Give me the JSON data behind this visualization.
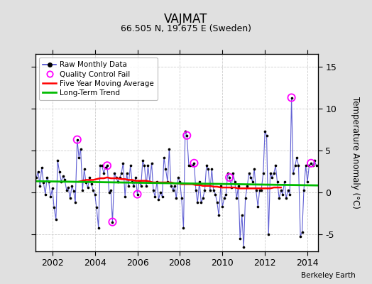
{
  "title": "VAJMAT",
  "subtitle": "66.505 N, 19.675 E (Sweden)",
  "ylabel": "Temperature Anomaly (°C)",
  "attribution": "Berkeley Earth",
  "xlim": [
    2001.2,
    2014.5
  ],
  "ylim": [
    -7.0,
    16.5
  ],
  "yticks": [
    -5,
    0,
    5,
    10,
    15
  ],
  "xticks": [
    2002,
    2004,
    2006,
    2008,
    2010,
    2012,
    2014
  ],
  "bg_color": "#e0e0e0",
  "plot_bg_color": "#ffffff",
  "line_color": "#4444cc",
  "dot_color": "#000000",
  "ma_color": "#ff0000",
  "trend_color": "#00bb00",
  "qc_color": "#ff00ff",
  "raw_data": [
    [
      2001.25,
      1.8
    ],
    [
      2001.33,
      2.5
    ],
    [
      2001.42,
      0.8
    ],
    [
      2001.5,
      3.0
    ],
    [
      2001.58,
      1.2
    ],
    [
      2001.67,
      -0.2
    ],
    [
      2001.75,
      1.8
    ],
    [
      2001.83,
      1.3
    ],
    [
      2001.92,
      -0.5
    ],
    [
      2002.0,
      0.5
    ],
    [
      2002.08,
      -1.8
    ],
    [
      2002.17,
      -3.2
    ],
    [
      2002.25,
      3.8
    ],
    [
      2002.33,
      2.5
    ],
    [
      2002.42,
      1.3
    ],
    [
      2002.5,
      2.0
    ],
    [
      2002.58,
      1.5
    ],
    [
      2002.67,
      0.3
    ],
    [
      2002.75,
      0.6
    ],
    [
      2002.83,
      -0.7
    ],
    [
      2002.92,
      0.8
    ],
    [
      2003.0,
      0.2
    ],
    [
      2003.08,
      -1.2
    ],
    [
      2003.17,
      6.3
    ],
    [
      2003.25,
      4.2
    ],
    [
      2003.33,
      5.2
    ],
    [
      2003.42,
      0.3
    ],
    [
      2003.5,
      2.8
    ],
    [
      2003.58,
      1.2
    ],
    [
      2003.67,
      0.6
    ],
    [
      2003.75,
      1.8
    ],
    [
      2003.83,
      1.0
    ],
    [
      2003.92,
      0.3
    ],
    [
      2004.0,
      -0.2
    ],
    [
      2004.08,
      -1.8
    ],
    [
      2004.17,
      -4.2
    ],
    [
      2004.25,
      3.2
    ],
    [
      2004.33,
      3.2
    ],
    [
      2004.42,
      2.3
    ],
    [
      2004.5,
      3.0
    ],
    [
      2004.58,
      3.2
    ],
    [
      2004.67,
      0.0
    ],
    [
      2004.75,
      0.3
    ],
    [
      2004.83,
      -3.5
    ],
    [
      2004.92,
      2.3
    ],
    [
      2005.0,
      1.8
    ],
    [
      2005.08,
      1.3
    ],
    [
      2005.17,
      1.8
    ],
    [
      2005.25,
      2.3
    ],
    [
      2005.33,
      3.5
    ],
    [
      2005.42,
      -0.5
    ],
    [
      2005.5,
      2.3
    ],
    [
      2005.58,
      0.8
    ],
    [
      2005.67,
      3.2
    ],
    [
      2005.75,
      1.3
    ],
    [
      2005.83,
      0.8
    ],
    [
      2005.92,
      1.8
    ],
    [
      2006.0,
      -0.2
    ],
    [
      2006.08,
      1.3
    ],
    [
      2006.17,
      0.8
    ],
    [
      2006.25,
      3.8
    ],
    [
      2006.33,
      3.2
    ],
    [
      2006.42,
      0.8
    ],
    [
      2006.5,
      3.2
    ],
    [
      2006.58,
      1.3
    ],
    [
      2006.67,
      3.5
    ],
    [
      2006.75,
      0.3
    ],
    [
      2006.83,
      -0.5
    ],
    [
      2006.92,
      1.3
    ],
    [
      2007.0,
      -0.8
    ],
    [
      2007.08,
      0.0
    ],
    [
      2007.17,
      -0.5
    ],
    [
      2007.25,
      4.2
    ],
    [
      2007.33,
      2.8
    ],
    [
      2007.42,
      1.3
    ],
    [
      2007.5,
      5.2
    ],
    [
      2007.58,
      0.8
    ],
    [
      2007.67,
      0.3
    ],
    [
      2007.75,
      0.8
    ],
    [
      2007.83,
      -0.7
    ],
    [
      2007.92,
      1.8
    ],
    [
      2008.0,
      1.3
    ],
    [
      2008.08,
      -0.7
    ],
    [
      2008.17,
      -4.2
    ],
    [
      2008.25,
      7.3
    ],
    [
      2008.33,
      6.8
    ],
    [
      2008.42,
      3.2
    ],
    [
      2008.5,
      3.2
    ],
    [
      2008.58,
      3.2
    ],
    [
      2008.67,
      3.5
    ],
    [
      2008.75,
      0.3
    ],
    [
      2008.83,
      -1.2
    ],
    [
      2008.92,
      1.3
    ],
    [
      2009.0,
      -1.2
    ],
    [
      2009.08,
      -0.7
    ],
    [
      2009.17,
      0.3
    ],
    [
      2009.25,
      3.2
    ],
    [
      2009.33,
      2.8
    ],
    [
      2009.42,
      0.3
    ],
    [
      2009.5,
      2.8
    ],
    [
      2009.58,
      0.3
    ],
    [
      2009.67,
      -0.2
    ],
    [
      2009.75,
      -1.2
    ],
    [
      2009.83,
      -2.7
    ],
    [
      2009.92,
      0.8
    ],
    [
      2010.0,
      -1.7
    ],
    [
      2010.08,
      -0.7
    ],
    [
      2010.17,
      -0.2
    ],
    [
      2010.25,
      2.3
    ],
    [
      2010.33,
      1.8
    ],
    [
      2010.42,
      0.6
    ],
    [
      2010.5,
      2.3
    ],
    [
      2010.58,
      1.3
    ],
    [
      2010.67,
      -0.7
    ],
    [
      2010.75,
      0.8
    ],
    [
      2010.83,
      -5.5
    ],
    [
      2010.92,
      -2.7
    ],
    [
      2011.0,
      -6.5
    ],
    [
      2011.08,
      -0.7
    ],
    [
      2011.17,
      0.8
    ],
    [
      2011.25,
      2.3
    ],
    [
      2011.33,
      1.8
    ],
    [
      2011.42,
      1.3
    ],
    [
      2011.5,
      2.8
    ],
    [
      2011.58,
      0.3
    ],
    [
      2011.67,
      -1.7
    ],
    [
      2011.75,
      0.3
    ],
    [
      2011.83,
      0.3
    ],
    [
      2011.92,
      2.3
    ],
    [
      2012.0,
      7.3
    ],
    [
      2012.08,
      6.8
    ],
    [
      2012.17,
      -5.0
    ],
    [
      2012.25,
      2.3
    ],
    [
      2012.33,
      1.8
    ],
    [
      2012.42,
      2.3
    ],
    [
      2012.5,
      3.2
    ],
    [
      2012.58,
      1.3
    ],
    [
      2012.67,
      -0.7
    ],
    [
      2012.75,
      0.3
    ],
    [
      2012.83,
      -0.2
    ],
    [
      2012.92,
      1.3
    ],
    [
      2013.0,
      -0.7
    ],
    [
      2013.08,
      0.3
    ],
    [
      2013.17,
      -0.2
    ],
    [
      2013.25,
      11.3
    ],
    [
      2013.33,
      2.3
    ],
    [
      2013.42,
      3.2
    ],
    [
      2013.5,
      4.2
    ],
    [
      2013.58,
      3.2
    ],
    [
      2013.67,
      -5.2
    ],
    [
      2013.75,
      -4.7
    ],
    [
      2013.83,
      0.3
    ],
    [
      2013.92,
      3.2
    ],
    [
      2014.0,
      1.3
    ],
    [
      2014.08,
      3.2
    ],
    [
      2014.17,
      3.5
    ],
    [
      2014.25,
      3.2
    ],
    [
      2014.33,
      3.8
    ],
    [
      2014.42,
      3.2
    ]
  ],
  "qc_fail_points": [
    [
      2003.17,
      6.3
    ],
    [
      2004.83,
      -3.5
    ],
    [
      2004.58,
      3.2
    ],
    [
      2006.0,
      -0.2
    ],
    [
      2008.33,
      6.8
    ],
    [
      2008.67,
      3.5
    ],
    [
      2010.33,
      1.8
    ],
    [
      2013.25,
      11.3
    ],
    [
      2014.17,
      3.5
    ]
  ],
  "moving_avg": [
    [
      2003.25,
      1.3
    ],
    [
      2003.42,
      1.4
    ],
    [
      2003.58,
      1.5
    ],
    [
      2003.75,
      1.5
    ],
    [
      2003.92,
      1.5
    ],
    [
      2004.08,
      1.6
    ],
    [
      2004.25,
      1.7
    ],
    [
      2004.42,
      1.7
    ],
    [
      2004.58,
      1.8
    ],
    [
      2004.75,
      1.7
    ],
    [
      2004.92,
      1.7
    ],
    [
      2005.08,
      1.7
    ],
    [
      2005.25,
      1.6
    ],
    [
      2005.42,
      1.6
    ],
    [
      2005.58,
      1.5
    ],
    [
      2005.75,
      1.5
    ],
    [
      2005.92,
      1.4
    ],
    [
      2006.08,
      1.4
    ],
    [
      2006.25,
      1.4
    ],
    [
      2006.42,
      1.4
    ],
    [
      2006.58,
      1.3
    ],
    [
      2006.75,
      1.2
    ],
    [
      2006.92,
      1.2
    ],
    [
      2007.08,
      1.2
    ],
    [
      2007.25,
      1.2
    ],
    [
      2007.42,
      1.2
    ],
    [
      2007.58,
      1.2
    ],
    [
      2007.75,
      1.1
    ],
    [
      2007.92,
      1.1
    ],
    [
      2008.08,
      1.0
    ],
    [
      2008.25,
      1.0
    ],
    [
      2008.42,
      1.0
    ],
    [
      2008.58,
      1.0
    ],
    [
      2008.75,
      0.9
    ],
    [
      2008.92,
      0.9
    ],
    [
      2009.08,
      0.8
    ],
    [
      2009.25,
      0.8
    ],
    [
      2009.42,
      0.8
    ],
    [
      2009.58,
      0.7
    ],
    [
      2009.75,
      0.7
    ],
    [
      2009.92,
      0.6
    ],
    [
      2010.08,
      0.6
    ],
    [
      2010.25,
      0.6
    ],
    [
      2010.42,
      0.6
    ],
    [
      2010.58,
      0.6
    ],
    [
      2010.75,
      0.5
    ],
    [
      2010.92,
      0.5
    ],
    [
      2011.08,
      0.5
    ],
    [
      2011.25,
      0.5
    ],
    [
      2011.42,
      0.5
    ],
    [
      2011.58,
      0.5
    ],
    [
      2011.75,
      0.5
    ],
    [
      2011.92,
      0.5
    ],
    [
      2012.08,
      0.5
    ],
    [
      2012.25,
      0.5
    ],
    [
      2012.42,
      0.6
    ],
    [
      2012.58,
      0.6
    ],
    [
      2012.75,
      0.6
    ]
  ],
  "trend_x": [
    2001.2,
    2014.5
  ],
  "trend_y": [
    1.35,
    0.85
  ]
}
